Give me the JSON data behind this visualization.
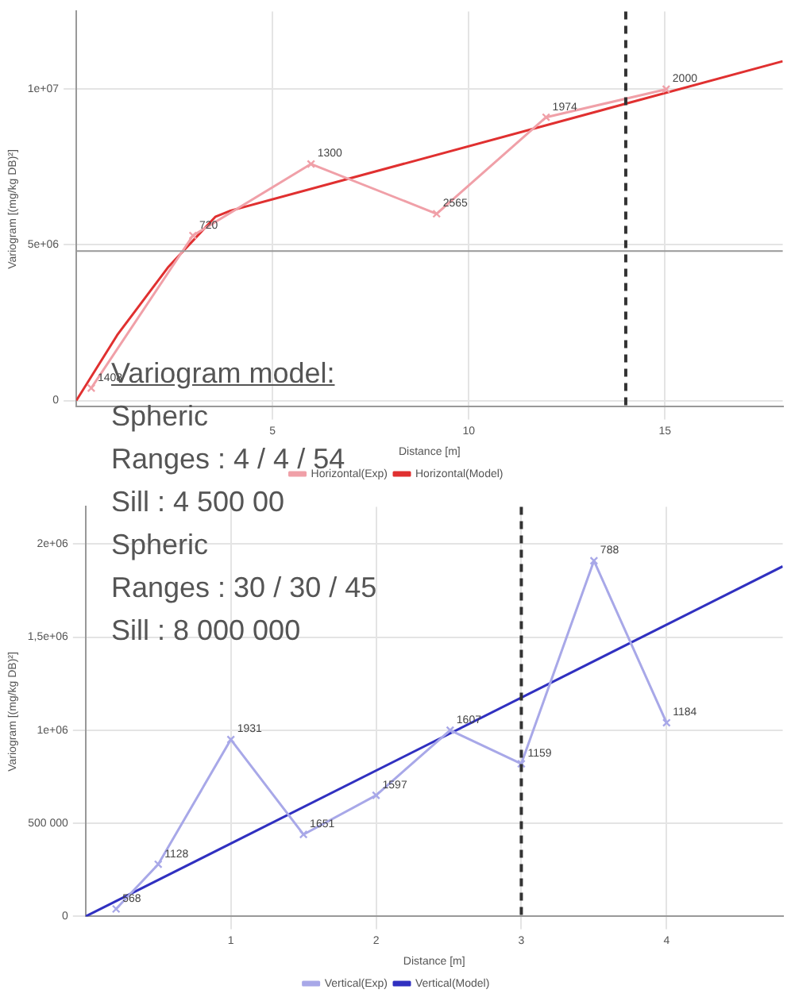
{
  "chart_data": [
    {
      "type": "line",
      "xlabel": "Distance [m]",
      "ylabel": "Variogram [(mg/kg DB)²]",
      "xlim": [
        0,
        18
      ],
      "xticks": [
        5,
        10,
        15
      ],
      "ylim": [
        -200000,
        12500000
      ],
      "yticks": [
        0,
        {
          "value": 5000000,
          "label": "5e+06"
        },
        {
          "value": 10000000,
          "label": "1e+07"
        }
      ],
      "grid": true,
      "legend": "bottom",
      "series": [
        {
          "name": "Horizontal(Exp)",
          "color": "#f0a0a8",
          "marker": "cross",
          "x": [
            0.38,
            2.97,
            5.98,
            9.18,
            11.97,
            15.03
          ],
          "values": [
            400000,
            5300000,
            7600000,
            6000000,
            9100000,
            10000000
          ]
        },
        {
          "name": "Horizontal(Model)",
          "color": "#e03030",
          "marker": "none",
          "x": [
            0,
            1.04,
            2.35,
            3.54,
            3.93,
            18
          ],
          "values": [
            0,
            2100000,
            4300000,
            5900000,
            6100000,
            10900000
          ]
        }
      ],
      "ref_lines": [
        {
          "axis": "x",
          "value": 14,
          "line_style": "dashed",
          "color": "#333333"
        },
        {
          "axis": "y",
          "value": 4800000,
          "line_style": "solid",
          "color": "#999999"
        }
      ],
      "annotations": [
        "Variogram model:",
        "Spheric",
        "Ranges : 4 / 4 / 54",
        "Sill : 4 500 00",
        "Spheric",
        "Ranges : 30 / 30 / 45",
        "Sill : 8 000 000",
        {
          "text": "1408",
          "x": 0.38,
          "y": 400000
        },
        {
          "text": "720",
          "x": 2.97,
          "y": 5300000
        },
        {
          "text": "1300",
          "x": 5.98,
          "y": 7600000
        },
        {
          "text": "2565",
          "x": 9.18,
          "y": 6000000
        },
        {
          "text": "1974",
          "x": 11.97,
          "y": 9100000
        },
        {
          "text": "2000",
          "x": 15.03,
          "y": 10000000
        }
      ]
    },
    {
      "type": "line",
      "xlabel": "Distance [m]",
      "ylabel": "Variogram [(mg/kg DB)²]",
      "xlim": [
        0,
        4.8
      ],
      "xticks": [
        1,
        2,
        3,
        4
      ],
      "ylim": [
        0,
        2200000
      ],
      "yticks": [
        0,
        {
          "value": 500000,
          "label": "500 000"
        },
        {
          "value": 1000000,
          "label": "1e+06"
        },
        {
          "value": 1500000,
          "label": "1,5e+06"
        },
        {
          "value": 2000000,
          "label": "2e+06"
        }
      ],
      "grid": true,
      "legend": "bottom",
      "series": [
        {
          "name": "Vertical(Exp)",
          "color": "#a8a8e8",
          "marker": "cross",
          "x": [
            0.21,
            0.5,
            1.0,
            1.5,
            2.0,
            2.51,
            3.0,
            3.5,
            4.0
          ],
          "values": [
            40000,
            280000,
            950000,
            440000,
            650000,
            1000000,
            820000,
            1910000,
            1040000
          ]
        },
        {
          "name": "Vertical(Model)",
          "color": "#3030c0",
          "marker": "none",
          "x": [
            0,
            4.8
          ],
          "values": [
            0,
            1880000
          ]
        }
      ],
      "ref_lines": [
        {
          "axis": "x",
          "value": 3,
          "line_style": "dashed",
          "color": "#333333"
        }
      ],
      "annotations": [
        {
          "text": "568",
          "x": 0.21,
          "y": 40000
        },
        {
          "text": "1128",
          "x": 0.5,
          "y": 280000
        },
        {
          "text": "1931",
          "x": 1.0,
          "y": 950000
        },
        {
          "text": "1651",
          "x": 1.5,
          "y": 440000
        },
        {
          "text": "1597",
          "x": 2.0,
          "y": 650000
        },
        {
          "text": "1607",
          "x": 2.51,
          "y": 1000000
        },
        {
          "text": "1159",
          "x": 3.0,
          "y": 820000
        },
        {
          "text": "788",
          "x": 3.5,
          "y": 1910000
        },
        {
          "text": "1184",
          "x": 4.0,
          "y": 1040000
        }
      ]
    }
  ]
}
